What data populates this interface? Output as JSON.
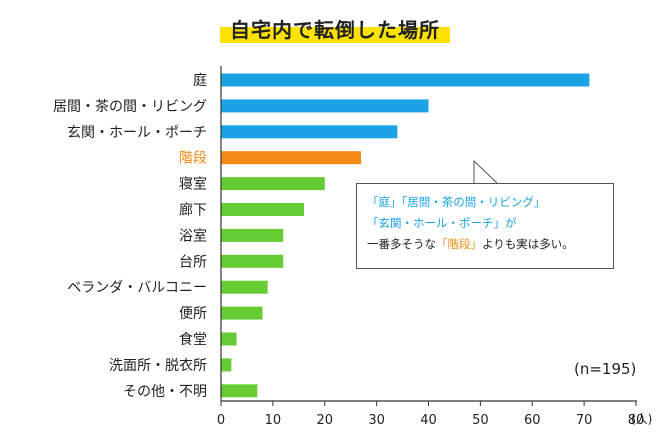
{
  "title": "自宅内で転倒した場所",
  "annotation": {
    "line1": "「庭」「居間・茶の間・リビング」",
    "line2": "「玄関・ホール・ポーチ」が",
    "line3_pre": "一番多そうな",
    "line3_highlight": "「階段」",
    "line3_post": "よりも実は多い。"
  },
  "n_label": "(n=195)",
  "unit_label": "(人)",
  "colors": {
    "blue": "#1aa3e6",
    "orange": "#f58b14",
    "green": "#66cc33",
    "highlight_text": "#f08a10"
  },
  "chart_data": {
    "type": "bar",
    "orientation": "horizontal",
    "categories": [
      "庭",
      "居間・茶の間・リビング",
      "玄関・ホール・ポーチ",
      "階段",
      "寝室",
      "廊下",
      "浴室",
      "台所",
      "ベランダ・バルコニー",
      "便所",
      "食堂",
      "洗面所・脱衣所",
      "その他・不明"
    ],
    "values": [
      71,
      40,
      34,
      27,
      20,
      16,
      12,
      12,
      9,
      8,
      3,
      2,
      7
    ],
    "bar_colors": [
      "blue",
      "blue",
      "blue",
      "orange",
      "green",
      "green",
      "green",
      "green",
      "green",
      "green",
      "green",
      "green",
      "green"
    ],
    "xlim": [
      0,
      80
    ],
    "xticks": [
      0,
      10,
      20,
      30,
      40,
      50,
      60,
      70,
      80
    ],
    "title": "自宅内で転倒した場所",
    "xlabel": "",
    "ylabel": ""
  }
}
